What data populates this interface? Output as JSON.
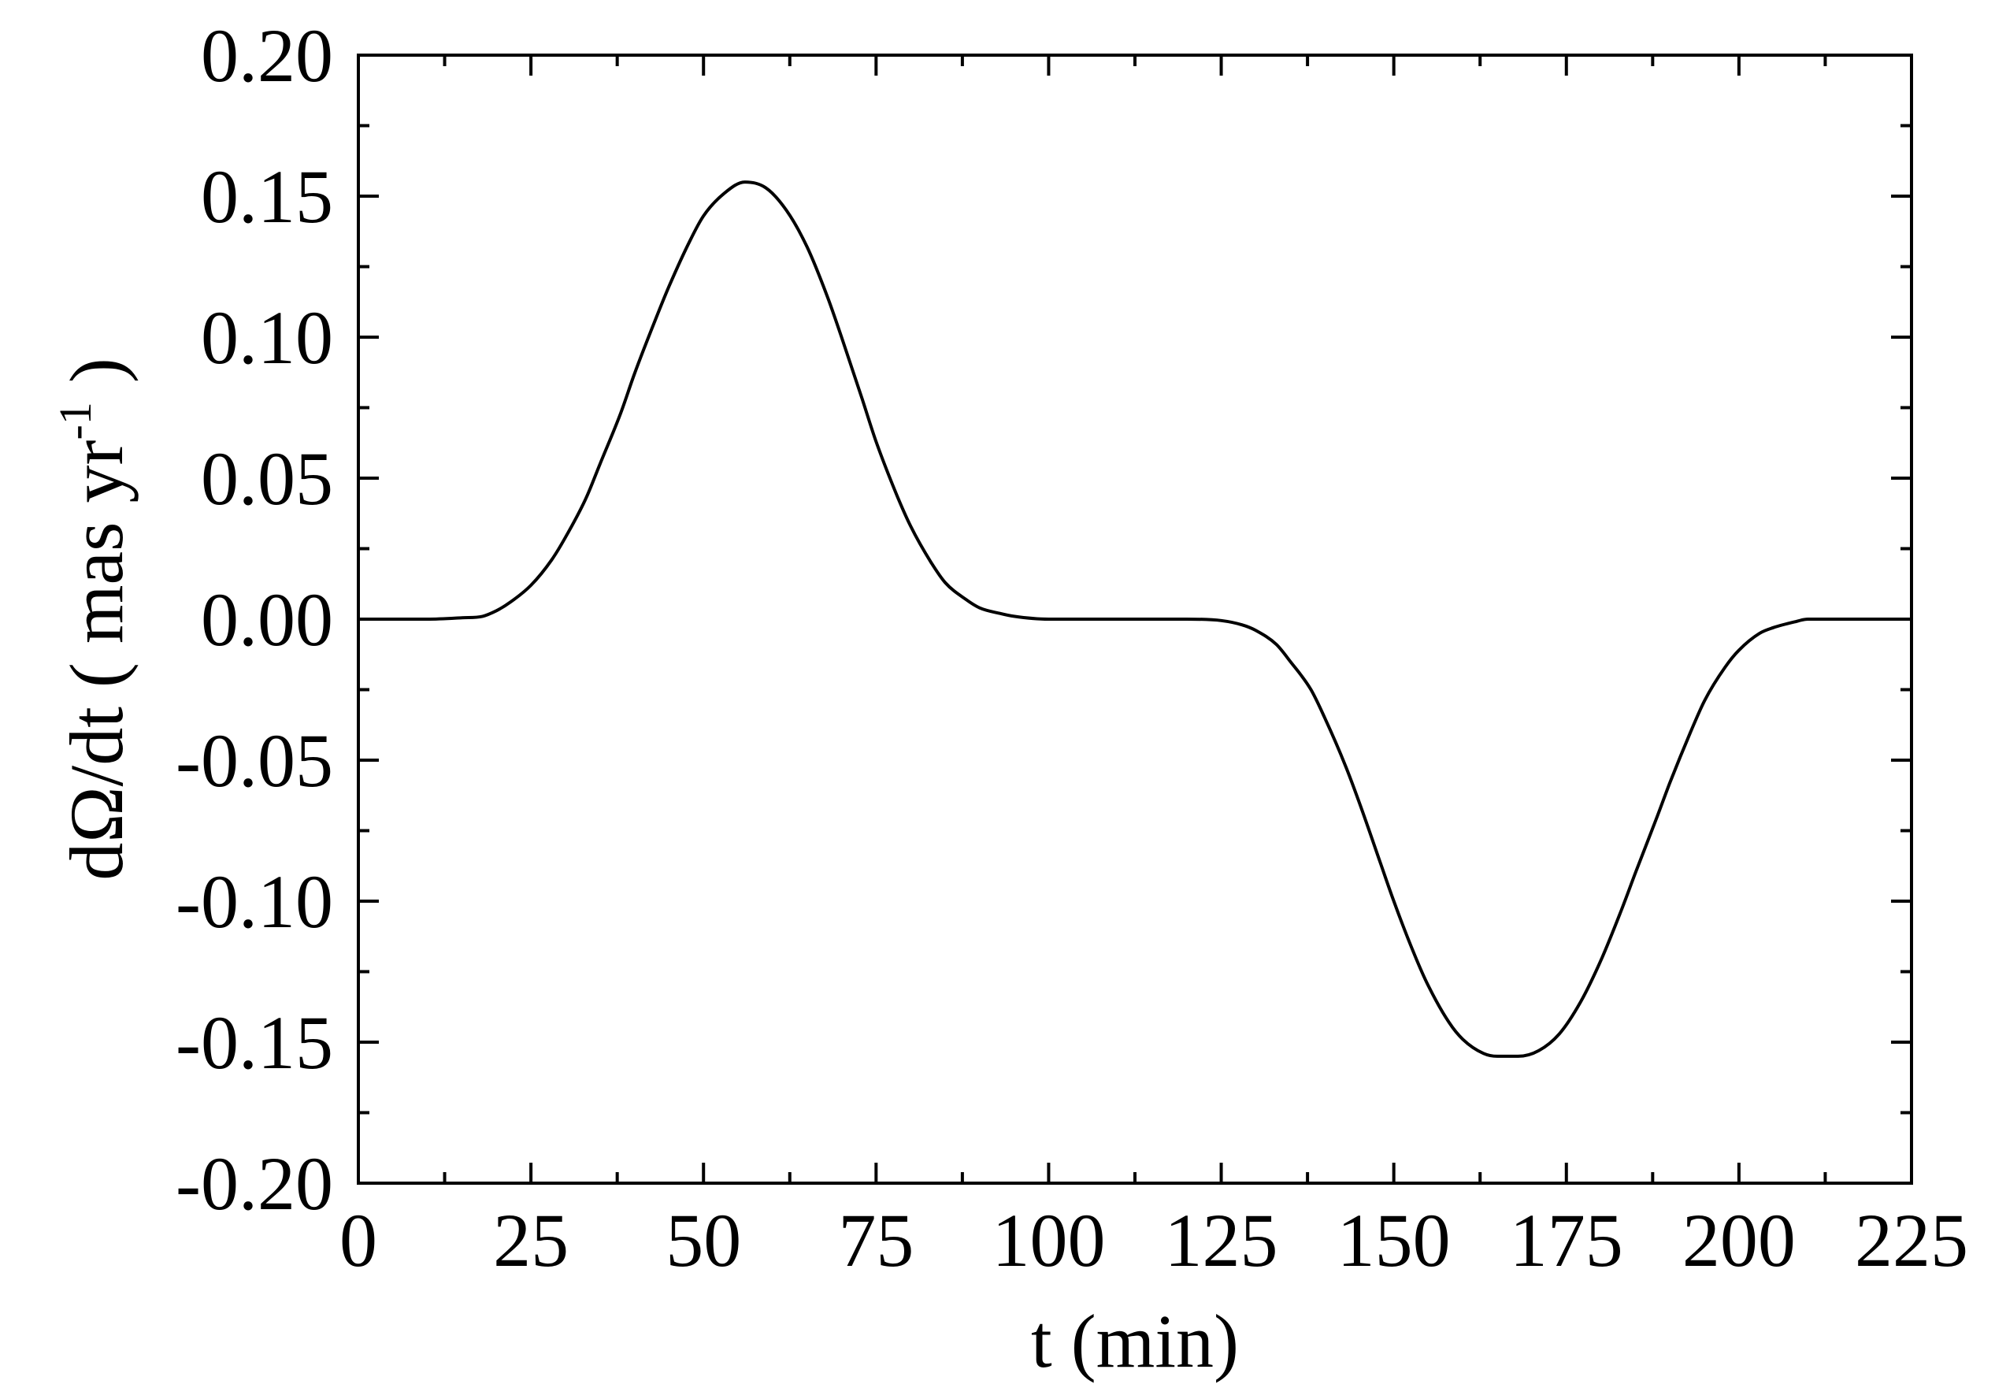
{
  "chart_data": {
    "type": "line",
    "title": "",
    "xlabel": "t (min)",
    "ylabel": {
      "main": "dΩ/dt ( mas yr",
      "superscript": "-1",
      "close": " )"
    },
    "xlim": [
      0,
      225
    ],
    "ylim": [
      -0.2,
      0.2
    ],
    "x_ticks": [
      0,
      25,
      50,
      75,
      100,
      125,
      150,
      175,
      200,
      225
    ],
    "x_tick_labels": [
      "0",
      "25",
      "50",
      "75",
      "100",
      "125",
      "150",
      "175",
      "200",
      "225"
    ],
    "y_ticks": [
      0.2,
      0.15,
      0.1,
      0.05,
      0.0,
      -0.05,
      -0.1,
      -0.15,
      -0.2
    ],
    "y_tick_labels": [
      "0.20",
      "0.15",
      "0.10",
      "0.05",
      "0.00",
      "-0.05",
      "-0.10",
      "-0.15",
      "-0.20"
    ],
    "grid": false,
    "legend": "none",
    "line_color": "#000000",
    "series": [
      {
        "x": [
          0,
          10,
          15,
          18,
          20,
          22,
          25,
          28,
          30,
          33,
          35,
          38,
          40,
          43,
          45,
          48,
          50,
          53,
          56,
          59,
          62,
          65,
          68,
          70,
          73,
          75,
          78,
          80,
          83,
          85,
          88,
          90,
          93,
          95,
          100,
          105,
          110,
          115,
          120,
          125,
          128,
          130,
          133,
          135,
          138,
          140,
          143,
          145,
          148,
          150,
          153,
          155,
          158,
          160,
          163,
          165,
          168,
          171,
          174,
          177,
          180,
          183,
          185,
          188,
          190,
          193,
          195,
          198,
          200,
          203,
          205,
          208,
          210,
          215,
          225
        ],
        "y": [
          0.0,
          0.0,
          0.0005,
          0.001,
          0.003,
          0.006,
          0.012,
          0.021,
          0.029,
          0.043,
          0.055,
          0.073,
          0.087,
          0.106,
          0.118,
          0.134,
          0.143,
          0.151,
          0.155,
          0.153,
          0.145,
          0.132,
          0.114,
          0.1,
          0.078,
          0.063,
          0.044,
          0.033,
          0.02,
          0.013,
          0.007,
          0.004,
          0.002,
          0.001,
          0.0,
          0.0,
          0.0,
          0.0,
          0.0,
          -0.0005,
          -0.002,
          -0.004,
          -0.009,
          -0.015,
          -0.025,
          -0.035,
          -0.052,
          -0.065,
          -0.086,
          -0.1,
          -0.119,
          -0.13,
          -0.143,
          -0.149,
          -0.154,
          -0.155,
          -0.155,
          -0.153,
          -0.147,
          -0.136,
          -0.121,
          -0.103,
          -0.09,
          -0.071,
          -0.058,
          -0.04,
          -0.029,
          -0.017,
          -0.011,
          -0.005,
          -0.003,
          -0.001,
          0.0,
          0.0,
          0.0
        ]
      }
    ]
  }
}
